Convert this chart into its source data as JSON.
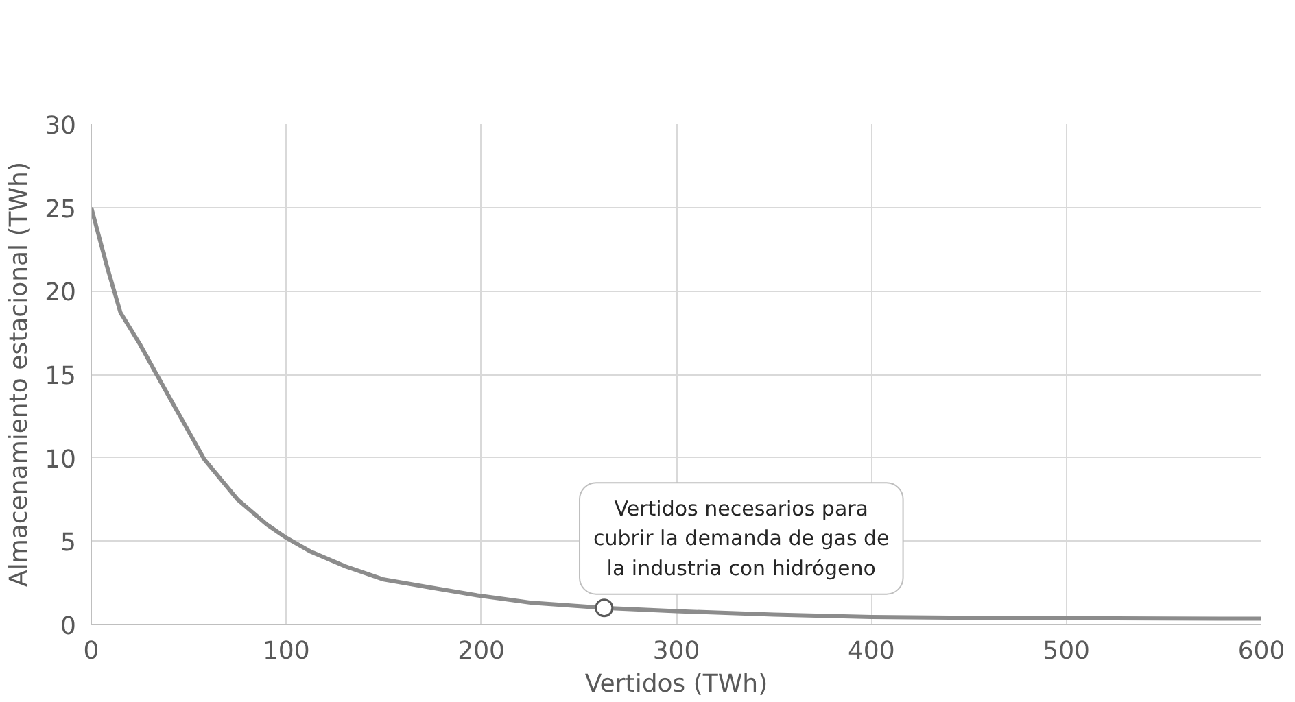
{
  "chart_data": {
    "type": "line",
    "xlabel": "Vertidos (TWh)",
    "ylabel": "Almacenamiento estacional (TWh)",
    "x": [
      0,
      8,
      15,
      25,
      33,
      45,
      58,
      75,
      90,
      100,
      112,
      130,
      150,
      175,
      198,
      226,
      263,
      300,
      350,
      400,
      450,
      500,
      550,
      600
    ],
    "series": [
      {
        "color": "#8c8c8c",
        "values": [
          25,
          21.5,
          18.7,
          16.8,
          15.1,
          12.6,
          9.9,
          7.5,
          6.0,
          5.2,
          4.4,
          3.5,
          2.7,
          2.2,
          1.75,
          1.3,
          1.0,
          0.8,
          0.6,
          0.45,
          0.4,
          0.38,
          0.36,
          0.35
        ]
      }
    ],
    "xlim": [
      0,
      600
    ],
    "ylim": [
      0,
      30
    ],
    "xticks": [
      0,
      100,
      200,
      300,
      400,
      500,
      600
    ],
    "yticks": [
      0,
      5,
      10,
      15,
      20,
      25,
      30
    ],
    "grid": true,
    "marker": "none",
    "line_style": "solid",
    "annotations": [
      {
        "text": "Vertidos necesarios para\ncubrir la demanda de gas de\nla industria con hidrógeno",
        "x": 263,
        "y": 1.0
      }
    ]
  }
}
